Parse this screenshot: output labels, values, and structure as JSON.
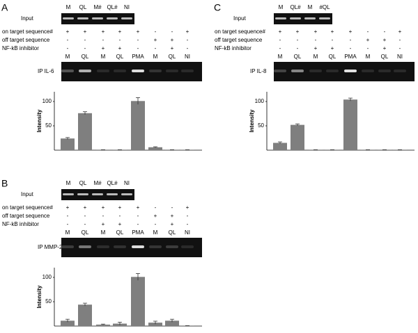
{
  "panels": [
    {
      "label": "A",
      "input_label": "Input",
      "input_lanes": [
        "M",
        "QL",
        "M#",
        "QL#",
        "NI"
      ],
      "conditions": [
        {
          "name": "on target sequence#",
          "marks": [
            "+",
            "+",
            "+",
            "+",
            "+",
            "-",
            "-",
            "+"
          ]
        },
        {
          "name": "off target sequence",
          "marks": [
            "-",
            "-",
            "-",
            "-",
            "-",
            "+",
            "+",
            "-"
          ]
        },
        {
          "name": "NF-kB inhibitor",
          "marks": [
            "-",
            "-",
            "+",
            "+",
            "-",
            "-",
            "+",
            "-"
          ]
        }
      ],
      "ip_label": "IP IL-6"
    },
    {
      "label": "B",
      "input_label": "Input",
      "input_lanes": [
        "M",
        "QL",
        "M#",
        "QL#",
        "NI"
      ],
      "conditions": [
        {
          "name": "on target sequence#",
          "marks": [
            "+",
            "+",
            "+",
            "+",
            "+",
            "-",
            "-",
            "+"
          ]
        },
        {
          "name": "off target sequence",
          "marks": [
            "-",
            "-",
            "-",
            "-",
            "-",
            "+",
            "+",
            "-"
          ]
        },
        {
          "name": "NF-kB inhibitor",
          "marks": [
            "-",
            "-",
            "+",
            "+",
            "-",
            "-",
            "+",
            "-"
          ]
        }
      ],
      "ip_label": "IP MMP-2"
    },
    {
      "label": "C",
      "input_label": "Input",
      "input_lanes": [
        "M",
        "QL#",
        "M",
        "#QL"
      ],
      "conditions": [
        {
          "name": "on target sequence#",
          "marks": [
            "+",
            "+",
            "+",
            "+",
            "+",
            "-",
            "-",
            "+"
          ]
        },
        {
          "name": "off target sequence",
          "marks": [
            "-",
            "-",
            "-",
            "-",
            "-",
            "+",
            "+",
            "-"
          ]
        },
        {
          "name": "NF-kB inhibitor",
          "marks": [
            "-",
            "-",
            "+",
            "+",
            "-",
            "-",
            "+",
            "-"
          ]
        }
      ],
      "ip_label": "IP IL-8"
    }
  ],
  "chart_data": [
    {
      "type": "bar",
      "ylabel": "Intensity",
      "categories": [
        "M",
        "QL",
        "M",
        "QL",
        "PMA",
        "M",
        "QL",
        "NI"
      ],
      "values": [
        24,
        76,
        1,
        1,
        101,
        6,
        1,
        1
      ],
      "errors": [
        2,
        3,
        0,
        0,
        7,
        1,
        0,
        0
      ],
      "color": "#7f7f7f",
      "ylim": [
        0,
        120
      ],
      "yticks": [
        50,
        100
      ]
    },
    {
      "type": "bar",
      "ylabel": "Intensity",
      "categories": [
        "M",
        "QL",
        "M",
        "QL",
        "PMA",
        "M",
        "QL",
        "NI"
      ],
      "values": [
        11,
        44,
        3,
        5,
        101,
        7,
        11,
        1
      ],
      "errors": [
        3,
        3,
        1,
        3,
        7,
        3,
        3,
        0
      ],
      "color": "#7f7f7f",
      "ylim": [
        0,
        120
      ],
      "yticks": [
        50,
        100
      ]
    },
    {
      "type": "bar",
      "ylabel": "Intensity",
      "categories": [
        "M",
        "QL",
        "M",
        "QL",
        "PMA",
        "M",
        "QL",
        "NI"
      ],
      "values": [
        15,
        52,
        1,
        1,
        104,
        1,
        1,
        1
      ],
      "errors": [
        2,
        2,
        0,
        0,
        3,
        0,
        0,
        0
      ],
      "color": "#7f7f7f",
      "ylim": [
        0,
        120
      ],
      "yticks": [
        50,
        100
      ]
    }
  ]
}
